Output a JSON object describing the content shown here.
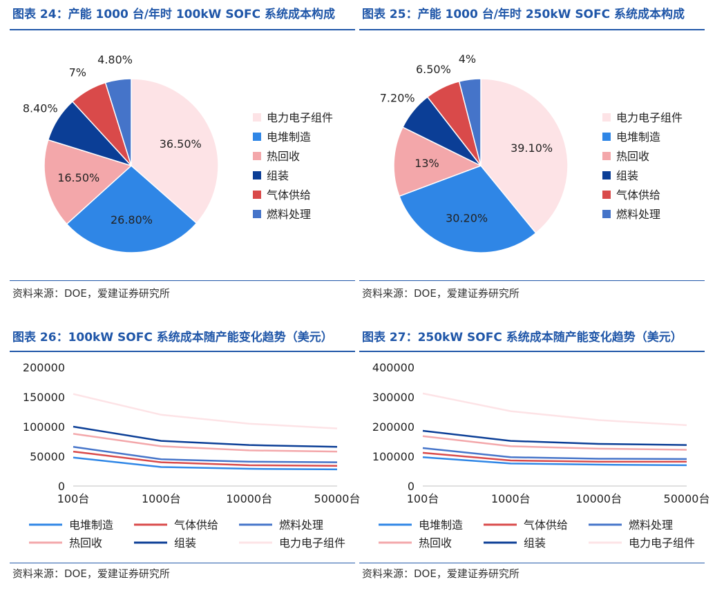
{
  "panels": [
    {
      "title": "图表 24：产能 1000 台/年时 100kW SOFC 系统成本构成",
      "source": "资料来源：DOE，爱建证券研究所"
    },
    {
      "title": "图表 25：产能 1000 台/年时 250kW SOFC 系统成本构成",
      "source": "资料来源：DOE，爱建证券研究所"
    },
    {
      "title": "图表 26：100kW SOFC 系统成本随产能变化趋势（美元）",
      "source": "资料来源：DOE，爱建证券研究所"
    },
    {
      "title": "图表 27：250kW SOFC 系统成本随产能变化趋势（美元）",
      "source": "资料来源：DOE，爱建证券研究所"
    }
  ],
  "colors": {
    "电力电子组件": "#fde3e6",
    "电堆制造": "#2f86e6",
    "热回收": "#f3a7aa",
    "组装": "#0b3e96",
    "气体供给": "#d94a4a",
    "燃料处理": "#4574c9"
  },
  "chart_data": [
    {
      "type": "pie",
      "labels": [
        "电力电子组件",
        "电堆制造",
        "热回收",
        "组装",
        "气体供给",
        "燃料处理"
      ],
      "values": [
        36.5,
        26.8,
        16.5,
        8.4,
        7,
        4.8
      ],
      "data_labels": [
        "36.50%",
        "26.80%",
        "16.50%",
        "8.40%",
        "7%",
        "4.80%"
      ]
    },
    {
      "type": "pie",
      "labels": [
        "电力电子组件",
        "电堆制造",
        "热回收",
        "组装",
        "气体供给",
        "燃料处理"
      ],
      "values": [
        39.1,
        30.2,
        13,
        7.2,
        6.5,
        4
      ],
      "data_labels": [
        "39.10%",
        "30.20%",
        "13%",
        "7.20%",
        "6.50%",
        "4%"
      ]
    },
    {
      "type": "line",
      "categories": [
        "100台",
        "1000台",
        "10000台",
        "50000台"
      ],
      "ylim": [
        0,
        200000
      ],
      "yticks": [
        "200000",
        "150000",
        "100000",
        "50000",
        "0"
      ],
      "series": [
        {
          "name": "电堆制造",
          "values": [
            48000,
            32000,
            29000,
            28000
          ]
        },
        {
          "name": "气体供给",
          "values": [
            58000,
            40000,
            35000,
            34000
          ]
        },
        {
          "name": "燃料处理",
          "values": [
            66000,
            45000,
            41000,
            40000
          ]
        },
        {
          "name": "热回收",
          "values": [
            88000,
            67000,
            60000,
            58000
          ]
        },
        {
          "name": "组装",
          "values": [
            100000,
            76000,
            69000,
            66000
          ]
        },
        {
          "name": "电力电子组件",
          "values": [
            155000,
            120000,
            105000,
            97000
          ]
        }
      ]
    },
    {
      "type": "line",
      "categories": [
        "100台",
        "1000台",
        "10000台",
        "50000台"
      ],
      "ylim": [
        0,
        400000
      ],
      "yticks": [
        "400000",
        "300000",
        "200000",
        "100000",
        "0"
      ],
      "series": [
        {
          "name": "电堆制造",
          "values": [
            97000,
            76000,
            72000,
            70000
          ]
        },
        {
          "name": "气体供给",
          "values": [
            112000,
            86000,
            82000,
            82000
          ]
        },
        {
          "name": "燃料处理",
          "values": [
            128000,
            97000,
            92000,
            91000
          ]
        },
        {
          "name": "热回收",
          "values": [
            168000,
            134000,
            126000,
            122000
          ]
        },
        {
          "name": "组装",
          "values": [
            186000,
            152000,
            142000,
            138000
          ]
        },
        {
          "name": "电力电子组件",
          "values": [
            312000,
            252000,
            222000,
            205000
          ]
        }
      ]
    }
  ]
}
